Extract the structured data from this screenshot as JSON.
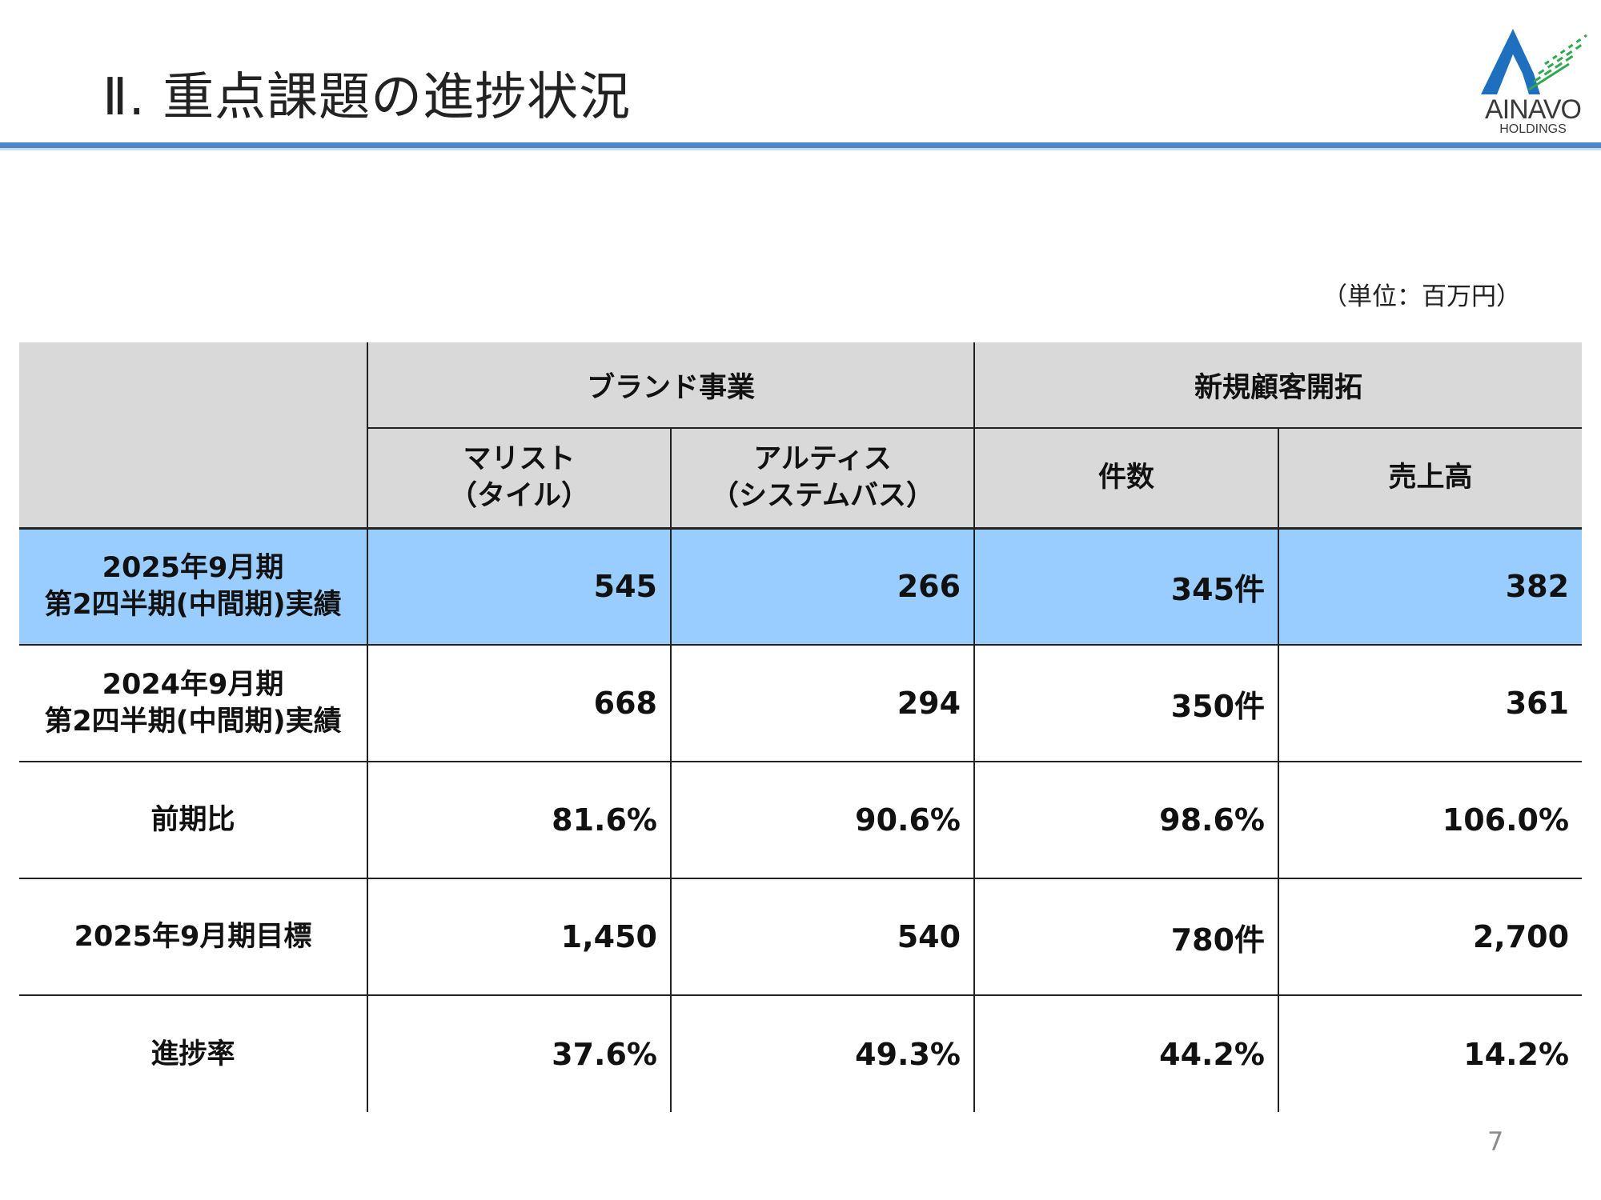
{
  "header": {
    "title": "Ⅱ. 重点課題の進捗状況"
  },
  "logo": {
    "name": "AINAVO",
    "sub": "HOLDINGS",
    "colors": {
      "blue": "#1f6fbf",
      "green": "#2fa84f"
    }
  },
  "unit_label": "（単位：百万円）",
  "table": {
    "groups": [
      {
        "label": "ブランド事業"
      },
      {
        "label": "新規顧客開拓"
      }
    ],
    "columns": [
      {
        "line1": "マリスト",
        "line2": "（タイル）"
      },
      {
        "line1": "アルティス",
        "line2": "（システムバス）"
      },
      {
        "line1": "件数",
        "line2": ""
      },
      {
        "line1": "売上高",
        "line2": ""
      }
    ],
    "rows": [
      {
        "label_line1": "2025年9月期",
        "label_line2": "第2四半期(中間期)実績",
        "values": [
          "545",
          "266",
          "345件",
          "382"
        ]
      },
      {
        "label_line1": "2024年9月期",
        "label_line2": "第2四半期(中間期)実績",
        "values": [
          "668",
          "294",
          "350件",
          "361"
        ]
      },
      {
        "label_line1": "前期比",
        "label_line2": "",
        "values": [
          "81.6%",
          "90.6%",
          "98.6%",
          "106.0%"
        ]
      },
      {
        "label_line1": "2025年9月期目標",
        "label_line2": "",
        "values": [
          "1,450",
          "540",
          "780件",
          "2,700"
        ]
      },
      {
        "label_line1": "進捗率",
        "label_line2": "",
        "values": [
          "37.6%",
          "49.3%",
          "44.2%",
          "14.2%"
        ]
      }
    ],
    "highlight_color": "#99ccff",
    "header_color": "#d9d9d9"
  },
  "page_number": "7"
}
